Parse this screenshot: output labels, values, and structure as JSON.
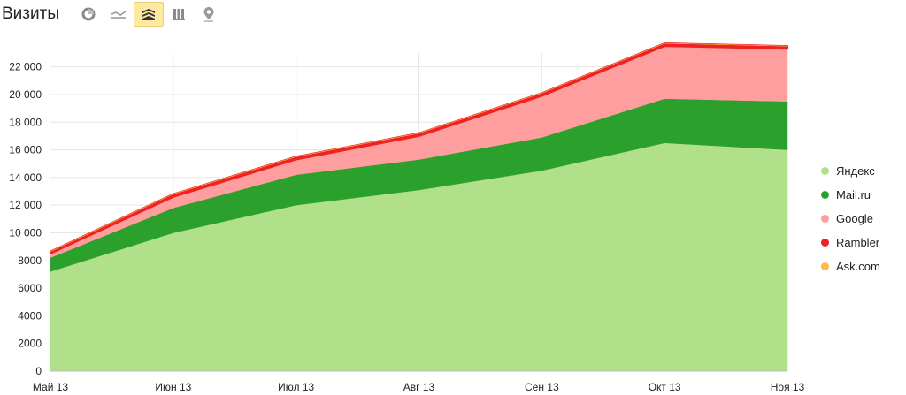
{
  "header": {
    "title": "Визиты",
    "views": [
      {
        "icon": "pie-chart-icon",
        "active": false
      },
      {
        "icon": "line-chart-icon",
        "active": false
      },
      {
        "icon": "area-chart-icon",
        "active": true
      },
      {
        "icon": "bar-chart-icon",
        "active": false
      },
      {
        "icon": "map-pin-icon",
        "active": false
      }
    ]
  },
  "chart_data": {
    "type": "area",
    "stacked": true,
    "categories": [
      "Май 13",
      "Июн 13",
      "Июл 13",
      "Авг 13",
      "Сен 13",
      "Окт 13",
      "Ноя 13"
    ],
    "ylim": [
      0,
      23000
    ],
    "yticks": [
      0,
      2000,
      4000,
      6000,
      8000,
      10000,
      12000,
      14000,
      16000,
      18000,
      20000,
      22000
    ],
    "ytick_labels": [
      "0",
      "2000",
      "4000",
      "6000",
      "8000",
      "10 000",
      "12 000",
      "14 000",
      "16 000",
      "18 000",
      "20 000",
      "22 000"
    ],
    "grid": true,
    "legend_position": "right",
    "series": [
      {
        "name": "Яндекс",
        "color": "#b0e08a",
        "values": [
          7200,
          10000,
          12000,
          13100,
          14500,
          16500,
          16000
        ]
      },
      {
        "name": "Mail.ru",
        "color": "#2ca02c",
        "values": [
          1000,
          1800,
          2200,
          2200,
          2400,
          3200,
          3500
        ]
      },
      {
        "name": "Google",
        "color": "#ff9e9e",
        "values": [
          300,
          800,
          1100,
          1700,
          3000,
          3800,
          3800
        ]
      },
      {
        "name": "Rambler",
        "color": "#ee2222",
        "values": [
          150,
          200,
          200,
          200,
          200,
          200,
          200
        ]
      },
      {
        "name": "Ask.com",
        "color": "#ffb84d",
        "values": [
          0,
          0,
          0,
          0,
          0,
          0,
          0
        ]
      }
    ]
  }
}
